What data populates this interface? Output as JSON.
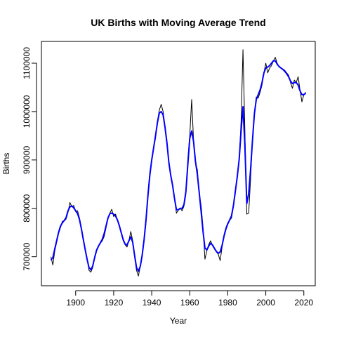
{
  "chart_data": {
    "type": "line",
    "title": "UK Births with Moving Average Trend",
    "xlabel": "Year",
    "ylabel": "Births",
    "xlim": [
      1882,
      2026
    ],
    "ylim": [
      640000,
      1145000
    ],
    "x_ticks": [
      1900,
      1920,
      1940,
      1960,
      1980,
      2000,
      2020
    ],
    "y_ticks": [
      700000,
      800000,
      900000,
      1000000,
      1100000
    ],
    "grid": false,
    "colors": {
      "raw": "#000000",
      "trend": "#0000ff"
    },
    "series": [
      {
        "role": "raw",
        "points": [
          [
            1887,
            700000
          ],
          [
            1888,
            683000
          ],
          [
            1889,
            712000
          ],
          [
            1890,
            730000
          ],
          [
            1891,
            748000
          ],
          [
            1892,
            760000
          ],
          [
            1893,
            773000
          ],
          [
            1894,
            774000
          ],
          [
            1895,
            778000
          ],
          [
            1896,
            792000
          ],
          [
            1897,
            812000
          ],
          [
            1898,
            803000
          ],
          [
            1899,
            806000
          ],
          [
            1900,
            793000
          ],
          [
            1901,
            795000
          ],
          [
            1902,
            780000
          ],
          [
            1903,
            760000
          ],
          [
            1904,
            735000
          ],
          [
            1905,
            715000
          ],
          [
            1906,
            698000
          ],
          [
            1907,
            672000
          ],
          [
            1908,
            668000
          ],
          [
            1909,
            678000
          ],
          [
            1910,
            700000
          ],
          [
            1911,
            715000
          ],
          [
            1912,
            722000
          ],
          [
            1913,
            728000
          ],
          [
            1914,
            733000
          ],
          [
            1915,
            742000
          ],
          [
            1916,
            760000
          ],
          [
            1917,
            780000
          ],
          [
            1918,
            790000
          ],
          [
            1919,
            798000
          ],
          [
            1920,
            783000
          ],
          [
            1921,
            788000
          ],
          [
            1922,
            776000
          ],
          [
            1923,
            765000
          ],
          [
            1924,
            748000
          ],
          [
            1925,
            733000
          ],
          [
            1926,
            725000
          ],
          [
            1927,
            720000
          ],
          [
            1928,
            733000
          ],
          [
            1929,
            752000
          ],
          [
            1930,
            733000
          ],
          [
            1931,
            700000
          ],
          [
            1932,
            672000
          ],
          [
            1933,
            660000
          ],
          [
            1934,
            680000
          ],
          [
            1935,
            702000
          ],
          [
            1936,
            735000
          ],
          [
            1937,
            770000
          ],
          [
            1938,
            832000
          ],
          [
            1939,
            875000
          ],
          [
            1940,
            900000
          ],
          [
            1941,
            925000
          ],
          [
            1942,
            945000
          ],
          [
            1943,
            980000
          ],
          [
            1944,
            1003000
          ],
          [
            1945,
            1015000
          ],
          [
            1946,
            1000000
          ],
          [
            1947,
            970000
          ],
          [
            1948,
            940000
          ],
          [
            1949,
            890000
          ],
          [
            1950,
            870000
          ],
          [
            1951,
            850000
          ],
          [
            1952,
            820000
          ],
          [
            1953,
            790000
          ],
          [
            1954,
            796000
          ],
          [
            1955,
            800000
          ],
          [
            1956,
            795000
          ],
          [
            1957,
            805000
          ],
          [
            1958,
            830000
          ],
          [
            1959,
            900000
          ],
          [
            1960,
            950000
          ],
          [
            1961,
            1025000
          ],
          [
            1962,
            940000
          ],
          [
            1963,
            895000
          ],
          [
            1964,
            880000
          ],
          [
            1965,
            830000
          ],
          [
            1966,
            805000
          ],
          [
            1967,
            760000
          ],
          [
            1968,
            695000
          ],
          [
            1969,
            712000
          ],
          [
            1970,
            725000
          ],
          [
            1971,
            733000
          ],
          [
            1972,
            722000
          ],
          [
            1973,
            716000
          ],
          [
            1974,
            710000
          ],
          [
            1975,
            705000
          ],
          [
            1976,
            692000
          ],
          [
            1977,
            720000
          ],
          [
            1978,
            745000
          ],
          [
            1979,
            760000
          ],
          [
            1980,
            770000
          ],
          [
            1981,
            775000
          ],
          [
            1982,
            780000
          ],
          [
            1983,
            805000
          ],
          [
            1984,
            840000
          ],
          [
            1985,
            866000
          ],
          [
            1986,
            900000
          ],
          [
            1987,
            980000
          ],
          [
            1988,
            1128000
          ],
          [
            1989,
            960000
          ],
          [
            1990,
            788000
          ],
          [
            1991,
            790000
          ],
          [
            1992,
            860000
          ],
          [
            1993,
            945000
          ],
          [
            1994,
            990000
          ],
          [
            1995,
            1030000
          ],
          [
            1996,
            1028000
          ],
          [
            1997,
            1040000
          ],
          [
            1998,
            1055000
          ],
          [
            1999,
            1080000
          ],
          [
            2000,
            1100000
          ],
          [
            2001,
            1080000
          ],
          [
            2002,
            1090000
          ],
          [
            2003,
            1095000
          ],
          [
            2004,
            1105000
          ],
          [
            2005,
            1112000
          ],
          [
            2006,
            1100000
          ],
          [
            2007,
            1092000
          ],
          [
            2008,
            1090000
          ],
          [
            2009,
            1088000
          ],
          [
            2010,
            1085000
          ],
          [
            2011,
            1080000
          ],
          [
            2012,
            1075000
          ],
          [
            2013,
            1060000
          ],
          [
            2014,
            1048000
          ],
          [
            2015,
            1065000
          ],
          [
            2016,
            1060000
          ],
          [
            2017,
            1072000
          ],
          [
            2018,
            1045000
          ],
          [
            2019,
            1020000
          ],
          [
            2020,
            1035000
          ],
          [
            2021,
            1040000
          ]
        ]
      },
      {
        "role": "trend",
        "points": [
          [
            1887,
            693000
          ],
          [
            1888,
            698000
          ],
          [
            1889,
            716000
          ],
          [
            1890,
            733000
          ],
          [
            1891,
            750000
          ],
          [
            1892,
            763000
          ],
          [
            1893,
            770000
          ],
          [
            1894,
            775000
          ],
          [
            1895,
            781000
          ],
          [
            1896,
            795000
          ],
          [
            1897,
            803000
          ],
          [
            1898,
            805000
          ],
          [
            1899,
            801000
          ],
          [
            1900,
            795000
          ],
          [
            1901,
            789000
          ],
          [
            1902,
            777000
          ],
          [
            1903,
            758000
          ],
          [
            1904,
            736000
          ],
          [
            1905,
            715000
          ],
          [
            1906,
            695000
          ],
          [
            1907,
            678000
          ],
          [
            1908,
            673000
          ],
          [
            1909,
            681000
          ],
          [
            1910,
            698000
          ],
          [
            1911,
            713000
          ],
          [
            1912,
            722000
          ],
          [
            1913,
            729000
          ],
          [
            1914,
            736000
          ],
          [
            1915,
            748000
          ],
          [
            1916,
            764000
          ],
          [
            1917,
            780000
          ],
          [
            1918,
            789000
          ],
          [
            1919,
            790000
          ],
          [
            1920,
            788000
          ],
          [
            1921,
            784000
          ],
          [
            1922,
            776000
          ],
          [
            1923,
            764000
          ],
          [
            1924,
            749000
          ],
          [
            1925,
            735000
          ],
          [
            1926,
            726000
          ],
          [
            1927,
            724000
          ],
          [
            1928,
            733000
          ],
          [
            1929,
            741000
          ],
          [
            1930,
            730000
          ],
          [
            1931,
            703000
          ],
          [
            1932,
            678000
          ],
          [
            1933,
            670000
          ],
          [
            1934,
            680000
          ],
          [
            1935,
            703000
          ],
          [
            1936,
            736000
          ],
          [
            1937,
            777000
          ],
          [
            1938,
            826000
          ],
          [
            1939,
            868000
          ],
          [
            1940,
            900000
          ],
          [
            1941,
            925000
          ],
          [
            1942,
            950000
          ],
          [
            1943,
            977000
          ],
          [
            1944,
            997000
          ],
          [
            1945,
            1000000
          ],
          [
            1946,
            993000
          ],
          [
            1947,
            968000
          ],
          [
            1948,
            935000
          ],
          [
            1949,
            895000
          ],
          [
            1950,
            868000
          ],
          [
            1951,
            847000
          ],
          [
            1952,
            820000
          ],
          [
            1953,
            797000
          ],
          [
            1954,
            797000
          ],
          [
            1955,
            800000
          ],
          [
            1956,
            800000
          ],
          [
            1957,
            808000
          ],
          [
            1958,
            835000
          ],
          [
            1959,
            890000
          ],
          [
            1960,
            945000
          ],
          [
            1961,
            960000
          ],
          [
            1962,
            938000
          ],
          [
            1963,
            897000
          ],
          [
            1964,
            870000
          ],
          [
            1965,
            832000
          ],
          [
            1966,
            793000
          ],
          [
            1967,
            752000
          ],
          [
            1968,
            718000
          ],
          [
            1969,
            714000
          ],
          [
            1970,
            722000
          ],
          [
            1971,
            728000
          ],
          [
            1972,
            724000
          ],
          [
            1973,
            717000
          ],
          [
            1974,
            711000
          ],
          [
            1975,
            707000
          ],
          [
            1976,
            710000
          ],
          [
            1977,
            723000
          ],
          [
            1978,
            742000
          ],
          [
            1979,
            757000
          ],
          [
            1980,
            768000
          ],
          [
            1981,
            776000
          ],
          [
            1982,
            785000
          ],
          [
            1983,
            806000
          ],
          [
            1984,
            836000
          ],
          [
            1985,
            866000
          ],
          [
            1986,
            902000
          ],
          [
            1987,
            960000
          ],
          [
            1988,
            1010000
          ],
          [
            1989,
            930000
          ],
          [
            1990,
            810000
          ],
          [
            1991,
            830000
          ],
          [
            1992,
            880000
          ],
          [
            1993,
            940000
          ],
          [
            1994,
            995000
          ],
          [
            1995,
            1025000
          ],
          [
            1996,
            1035000
          ],
          [
            1997,
            1045000
          ],
          [
            1998,
            1060000
          ],
          [
            1999,
            1080000
          ],
          [
            2000,
            1090000
          ],
          [
            2001,
            1092000
          ],
          [
            2002,
            1095000
          ],
          [
            2003,
            1100000
          ],
          [
            2004,
            1105000
          ],
          [
            2005,
            1105000
          ],
          [
            2006,
            1098000
          ],
          [
            2007,
            1093000
          ],
          [
            2008,
            1090000
          ],
          [
            2009,
            1087000
          ],
          [
            2010,
            1083000
          ],
          [
            2011,
            1078000
          ],
          [
            2012,
            1072000
          ],
          [
            2013,
            1063000
          ],
          [
            2014,
            1058000
          ],
          [
            2015,
            1060000
          ],
          [
            2016,
            1060000
          ],
          [
            2017,
            1055000
          ],
          [
            2018,
            1043000
          ],
          [
            2019,
            1035000
          ],
          [
            2020,
            1035000
          ],
          [
            2021,
            1038000
          ]
        ]
      }
    ]
  }
}
